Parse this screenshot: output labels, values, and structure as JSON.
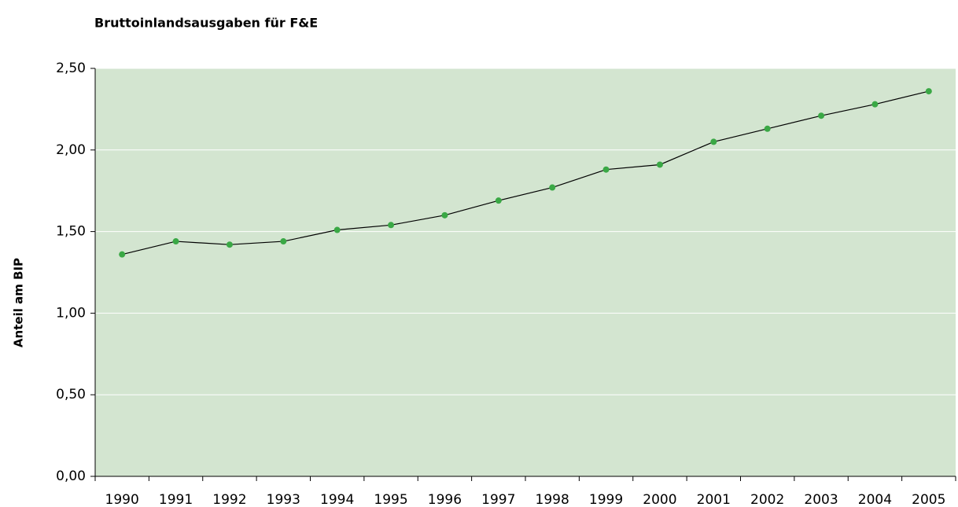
{
  "chart_data": {
    "type": "line",
    "title": "Bruttoinlandsausgaben für F&E",
    "y_label": "Anteil am BIP",
    "categories": [
      "1990",
      "1991",
      "1992",
      "1993",
      "1994",
      "1995",
      "1996",
      "1997",
      "1998",
      "1999",
      "2000",
      "2001",
      "2002",
      "2003",
      "2004",
      "2005"
    ],
    "values": [
      1.36,
      1.44,
      1.42,
      1.44,
      1.51,
      1.54,
      1.6,
      1.69,
      1.77,
      1.88,
      1.91,
      2.05,
      2.13,
      2.21,
      2.28,
      2.36
    ],
    "color": "#3aa845",
    "line_color": "#000000",
    "background": "#d3e5d0",
    "grid": true,
    "ylim": [
      0,
      2.5
    ],
    "yticks": [
      {
        "value": 0,
        "label": "0,00"
      },
      {
        "value": 0.5,
        "label": "0,50"
      },
      {
        "value": 1,
        "label": "1,00"
      },
      {
        "value": 1.5,
        "label": "1,50"
      },
      {
        "value": 2,
        "label": "2,00"
      },
      {
        "value": 2.5,
        "label": "2,50"
      }
    ]
  }
}
